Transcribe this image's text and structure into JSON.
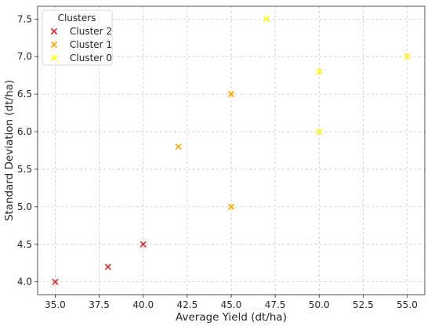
{
  "chart_data": {
    "type": "scatter",
    "xlabel": "Average Yield (dt/ha)",
    "ylabel": "Standard Deviation (dt/ha)",
    "xlim": [
      34.0,
      56.0
    ],
    "ylim": [
      3.83,
      7.67
    ],
    "xticks": [
      "35.0",
      "37.5",
      "40.0",
      "42.5",
      "45.0",
      "47.5",
      "50.0",
      "52.5",
      "55.0"
    ],
    "yticks": [
      "4.0",
      "4.5",
      "5.0",
      "5.5",
      "6.0",
      "6.5",
      "7.0",
      "7.5"
    ],
    "grid": true,
    "legend": {
      "title": "Clusters",
      "placement": "top-left"
    },
    "marker": "x",
    "series": [
      {
        "name": "Cluster 2",
        "color": "#d62728",
        "points": [
          [
            35,
            4.0
          ],
          [
            38,
            4.2
          ],
          [
            40,
            4.5
          ]
        ]
      },
      {
        "name": "Cluster 1",
        "color": "#ffa500",
        "points": [
          [
            42,
            5.8
          ],
          [
            45,
            6.5
          ],
          [
            45,
            5.0
          ]
        ]
      },
      {
        "name": "Cluster 0",
        "color": "#ffff00",
        "points": [
          [
            47,
            7.5
          ],
          [
            50,
            6.8
          ],
          [
            50,
            6.0
          ],
          [
            55,
            7.0
          ]
        ]
      }
    ]
  }
}
